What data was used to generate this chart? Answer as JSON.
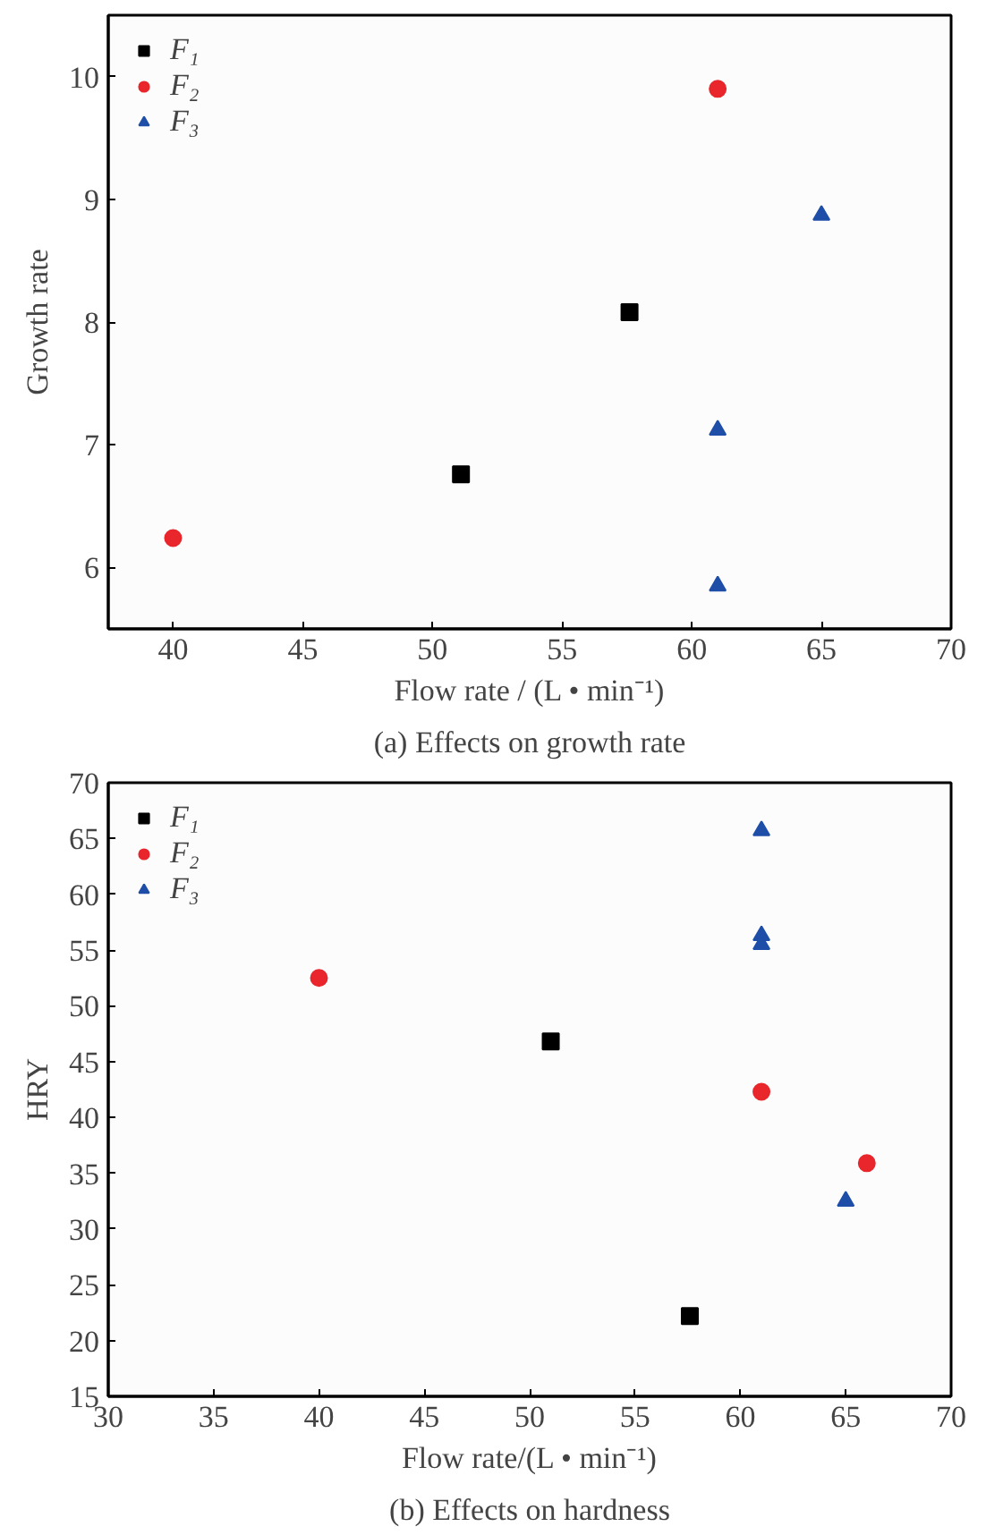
{
  "chart_data": [
    {
      "type": "scatter",
      "title": "(a) Effects on growth rate",
      "xlabel": "Flow rate / (L • min⁻¹)",
      "ylabel": "Growth rate",
      "xlim": [
        37.5,
        70
      ],
      "ylim": [
        5.5,
        10.5
      ],
      "xticks": [
        40,
        45,
        50,
        55,
        60,
        65,
        70
      ],
      "yticks": [
        6,
        7,
        8,
        9,
        10
      ],
      "grid": false,
      "legend": "top left",
      "series": [
        {
          "name": "F₁",
          "color": "#000000",
          "marker": "square",
          "x": [
            51.1,
            57.6
          ],
          "values": [
            6.76,
            8.08
          ]
        },
        {
          "name": "F₂",
          "color": "#e8262b",
          "marker": "circle",
          "x": [
            40,
            61
          ],
          "values": [
            6.24,
            9.9
          ]
        },
        {
          "name": "F₃",
          "color": "#1f4ea8",
          "marker": "triangle",
          "x": [
            61,
            61,
            65
          ],
          "values": [
            7.12,
            5.85,
            8.87
          ]
        }
      ]
    },
    {
      "type": "scatter",
      "title": "(b) Effects on hardness",
      "xlabel": "Flow rate/(L • min⁻¹)",
      "ylabel": "HRY",
      "xlim": [
        30,
        70
      ],
      "ylim": [
        15,
        70
      ],
      "xticks": [
        30,
        35,
        40,
        45,
        50,
        55,
        60,
        65,
        70
      ],
      "yticks": [
        15,
        20,
        25,
        30,
        35,
        40,
        45,
        50,
        55,
        60,
        65,
        70
      ],
      "grid": false,
      "legend": "top left",
      "series": [
        {
          "name": "F₁",
          "color": "#000000",
          "marker": "square",
          "x": [
            51,
            57.6
          ],
          "values": [
            46.8,
            22.2
          ]
        },
        {
          "name": "F₂",
          "color": "#e8262b",
          "marker": "circle",
          "x": [
            40,
            61,
            66
          ],
          "values": [
            52.5,
            42.3,
            35.9
          ]
        },
        {
          "name": "F₃",
          "color": "#1f4ea8",
          "marker": "triangle",
          "x": [
            61,
            61,
            61,
            65
          ],
          "values": [
            65.7,
            56.3,
            55.5,
            32.5
          ]
        }
      ]
    }
  ]
}
